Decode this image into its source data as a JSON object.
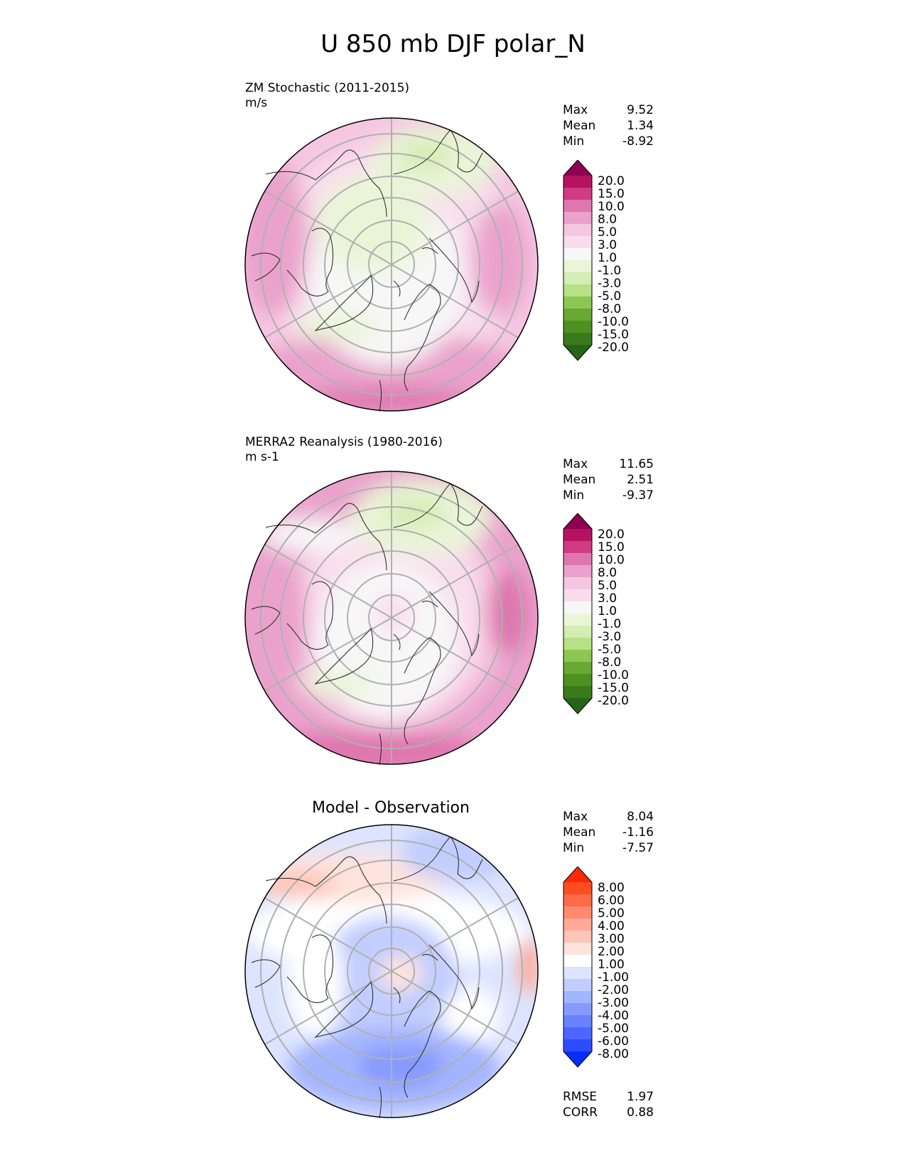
{
  "title": "U 850 mb DJF polar_N",
  "panels": [
    {
      "id": "model",
      "label_line1": "ZM Stochastic (2011-2015)",
      "label_line2": "m/s",
      "stats": [
        {
          "label": "Max",
          "value": "9.52"
        },
        {
          "label": "Mean",
          "value": "1.34"
        },
        {
          "label": "Min",
          "value": "-8.92"
        }
      ],
      "colorbar": {
        "ticks": [
          "20.0",
          "15.0",
          "10.0",
          "8.0",
          "5.0",
          "3.0",
          "1.0",
          "-1.0",
          "-3.0",
          "-5.0",
          "-8.0",
          "-10.0",
          "-15.0",
          "-20.0"
        ],
        "colors": [
          "#8e0152",
          "#b5125f",
          "#cf3b84",
          "#de77ae",
          "#eaa2cc",
          "#f5c6e2",
          "#f9dded",
          "#f7f7f7",
          "#eaf5d8",
          "#d4edb3",
          "#b8e186",
          "#8dc653",
          "#6aa834",
          "#4d9221",
          "#3a7a1a",
          "#276419"
        ]
      }
    },
    {
      "id": "obs",
      "label_line1": "MERRA2 Reanalysis (1980-2016)",
      "label_line2": "m s-1",
      "stats": [
        {
          "label": "Max",
          "value": "11.65"
        },
        {
          "label": "Mean",
          "value": "2.51"
        },
        {
          "label": "Min",
          "value": "-9.37"
        }
      ],
      "colorbar": {
        "ticks": [
          "20.0",
          "15.0",
          "10.0",
          "8.0",
          "5.0",
          "3.0",
          "1.0",
          "-1.0",
          "-3.0",
          "-5.0",
          "-8.0",
          "-10.0",
          "-15.0",
          "-20.0"
        ],
        "colors": [
          "#8e0152",
          "#b5125f",
          "#cf3b84",
          "#de77ae",
          "#eaa2cc",
          "#f5c6e2",
          "#f9dded",
          "#f7f7f7",
          "#eaf5d8",
          "#d4edb3",
          "#b8e186",
          "#8dc653",
          "#6aa834",
          "#4d9221",
          "#3a7a1a",
          "#276419"
        ]
      }
    },
    {
      "id": "diff",
      "subtitle": "Model - Observation",
      "stats": [
        {
          "label": "Max",
          "value": "8.04"
        },
        {
          "label": "Mean",
          "value": "-1.16"
        },
        {
          "label": "Min",
          "value": "-7.57"
        }
      ],
      "colorbar": {
        "ticks": [
          "8.00",
          "6.00",
          "5.00",
          "4.00",
          "3.00",
          "2.00",
          "1.00",
          "-1.00",
          "-2.00",
          "-3.00",
          "-4.00",
          "-5.00",
          "-6.00",
          "-8.00"
        ],
        "colors": [
          "#ff2a00",
          "#ff4d1f",
          "#ff6b48",
          "#ff8a70",
          "#ffa996",
          "#ffc5b8",
          "#ffe3dc",
          "#ffffff",
          "#dde4ff",
          "#c2cdff",
          "#a4b5ff",
          "#879bff",
          "#6a82ff",
          "#4c66ff",
          "#2e4cff",
          "#0a2cff"
        ]
      },
      "metrics": [
        {
          "label": "RMSE",
          "value": "1.97"
        },
        {
          "label": "CORR",
          "value": "0.88"
        }
      ]
    }
  ]
}
